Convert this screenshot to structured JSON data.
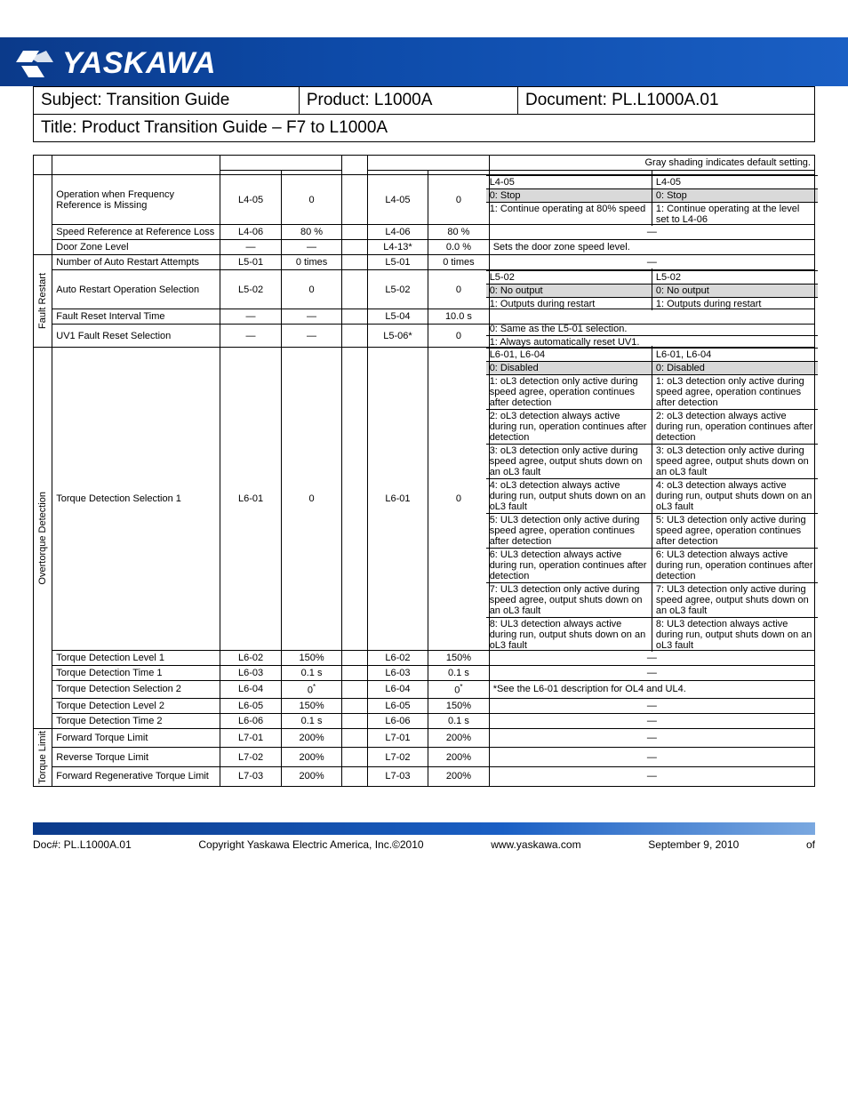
{
  "header": {
    "brand": "YASKAWA",
    "subject": "Subject: Transition Guide",
    "product": "Product:  L1000A",
    "document": "Document: PL.L1000A.01",
    "title": "Title: Product Transition Guide – F7 to L1000A"
  },
  "top_note": "Gray shading indicates default setting.",
  "groups": [
    {
      "label": "",
      "span": 3,
      "rows_key": "g1"
    },
    {
      "label": "Fault Restart",
      "span": 4,
      "rows_key": "g2"
    },
    {
      "label": "Overtorque Detection",
      "span": 6,
      "rows_key": "g3"
    },
    {
      "label": "Torque Limit",
      "span": 3,
      "rows_key": "g4"
    }
  ],
  "rows": {
    "g1": [
      {
        "name": "Operation when Frequency Reference is Missing",
        "no1": "L4-05",
        "def1": "0",
        "no2": "L4-05",
        "def2": "0",
        "notes": {
          "type": "pair",
          "leftHeader": "L4-05",
          "rightHeader": "L4-05",
          "rows": [
            {
              "l": "0: Stop",
              "r": "0: Stop",
              "shade": true
            },
            {
              "l": "1: Continue operating at 80% speed",
              "r": "1: Continue operating at the level set to L4-06"
            }
          ]
        }
      },
      {
        "name": "Speed Reference at Reference Loss",
        "no1": "L4-06",
        "def1": "80 %",
        "no2": "L4-06",
        "def2": "80 %",
        "notes": {
          "type": "dash"
        }
      },
      {
        "name": "Door Zone Level",
        "no1": "—",
        "def1": "—",
        "no2": "L4-13*",
        "def2": "0.0 %",
        "notes": {
          "type": "single",
          "text": "Sets the door zone speed level."
        }
      }
    ],
    "g2": [
      {
        "name": "Number of Auto Restart Attempts",
        "no1": "L5-01",
        "def1": "0 times",
        "no2": "L5-01",
        "def2": "0 times",
        "notes": {
          "type": "dash"
        }
      },
      {
        "name": "Auto Restart Operation Selection",
        "no1": "L5-02",
        "def1": "0",
        "no2": "L5-02",
        "def2": "0",
        "notes": {
          "type": "pair",
          "leftHeader": "L5-02",
          "rightHeader": "L5-02",
          "rows": [
            {
              "l": "0: No output",
              "r": "0: No output",
              "shade": true
            },
            {
              "l": "1: Outputs during restart",
              "r": "1: Outputs during restart"
            }
          ]
        }
      },
      {
        "name": "Fault Reset Interval Time",
        "no1": "—",
        "def1": "—",
        "no2": "L5-04",
        "def2": "10.0 s",
        "notes": {
          "type": "empty"
        }
      },
      {
        "name": "UV1 Fault Reset Selection",
        "no1": "—",
        "def1": "—",
        "no2": "L5-06*",
        "def2": "0",
        "notes": {
          "type": "single2",
          "lines": [
            "0: Same as the L5-01 selection.",
            "1: Always automatically reset UV1."
          ]
        }
      }
    ],
    "g3": [
      {
        "name": "Torque Detection Selection 1",
        "no1": "L6-01",
        "def1": "0",
        "no2": "L6-01",
        "def2": "0",
        "notes": {
          "type": "pair",
          "leftHeader": "L6-01, L6-04",
          "rightHeader": "L6-01, L6-04",
          "rows": [
            {
              "l": "0: Disabled",
              "r": "0: Disabled",
              "shade": true
            },
            {
              "l": "1: oL3 detection only active during speed agree, operation continues after detection",
              "r": "1: oL3 detection only active during speed agree, operation continues after detection"
            },
            {
              "l": "2: oL3 detection always active during run, operation continues after detection",
              "r": "2: oL3 detection always active during run, operation continues after detection"
            },
            {
              "l": "3: oL3 detection only active during speed agree, output shuts down on an oL3 fault",
              "r": "3: oL3 detection only active during speed agree, output shuts down on an oL3 fault"
            },
            {
              "l": "4: oL3 detection always active during run, output shuts down on an oL3 fault",
              "r": "4: oL3 detection always active during run, output shuts down on an oL3 fault"
            },
            {
              "l": "5: UL3 detection only active during speed agree, operation continues after detection",
              "r": "5: UL3 detection only active during speed agree, operation continues after detection"
            },
            {
              "l": "6: UL3 detection always active during run, operation continues after detection",
              "r": "6: UL3 detection always active during run, operation continues after detection"
            },
            {
              "l": "7: UL3 detection only active during speed agree, output shuts down on an oL3 fault",
              "r": "7: UL3 detection only active during speed agree, output shuts down on an oL3 fault"
            },
            {
              "l": "8: UL3 detection always active during run, output shuts down on an oL3 fault",
              "r": "8: UL3 detection always active during run, output shuts down on an oL3 fault"
            }
          ]
        }
      },
      {
        "name": "Torque Detection Level 1",
        "no1": "L6-02",
        "def1": "150%",
        "no2": "L6-02",
        "def2": "150%",
        "notes": {
          "type": "dash"
        }
      },
      {
        "name": "Torque Detection Time 1",
        "no1": "L6-03",
        "def1": "0.1 s",
        "no2": "L6-03",
        "def2": "0.1 s",
        "notes": {
          "type": "dash"
        }
      },
      {
        "name": "Torque Detection Selection 2",
        "no1": "L6-04",
        "def1": "0*",
        "sup1": true,
        "no2": "L6-04",
        "def2": "0*",
        "sup2": true,
        "notes": {
          "type": "single",
          "text": "*See the L6-01 description for OL4 and UL4."
        }
      },
      {
        "name": "Torque Detection Level 2",
        "no1": "L6-05",
        "def1": "150%",
        "no2": "L6-05",
        "def2": "150%",
        "notes": {
          "type": "dash"
        }
      },
      {
        "name": "Torque Detection Time 2",
        "no1": "L6-06",
        "def1": "0.1 s",
        "no2": "L6-06",
        "def2": "0.1 s",
        "notes": {
          "type": "dash"
        }
      }
    ],
    "g4": [
      {
        "name": "Forward Torque Limit",
        "no1": "L7-01",
        "def1": "200%",
        "no2": "L7-01",
        "def2": "200%",
        "notes": {
          "type": "dash"
        }
      },
      {
        "name": "Reverse Torque Limit",
        "no1": "L7-02",
        "def1": "200%",
        "no2": "L7-02",
        "def2": "200%",
        "notes": {
          "type": "dash"
        }
      },
      {
        "name": "Forward Regenerative Torque Limit",
        "no1": "L7-03",
        "def1": "200%",
        "no2": "L7-03",
        "def2": "200%",
        "notes": {
          "type": "dash"
        }
      }
    ]
  },
  "footer": {
    "doc": "Doc#: PL.L1000A.01",
    "copyright": "Copyright Yaskawa Electric America, Inc.©2010",
    "url": "www.yaskawa.com",
    "date": "September 9, 2010",
    "page": "of"
  }
}
